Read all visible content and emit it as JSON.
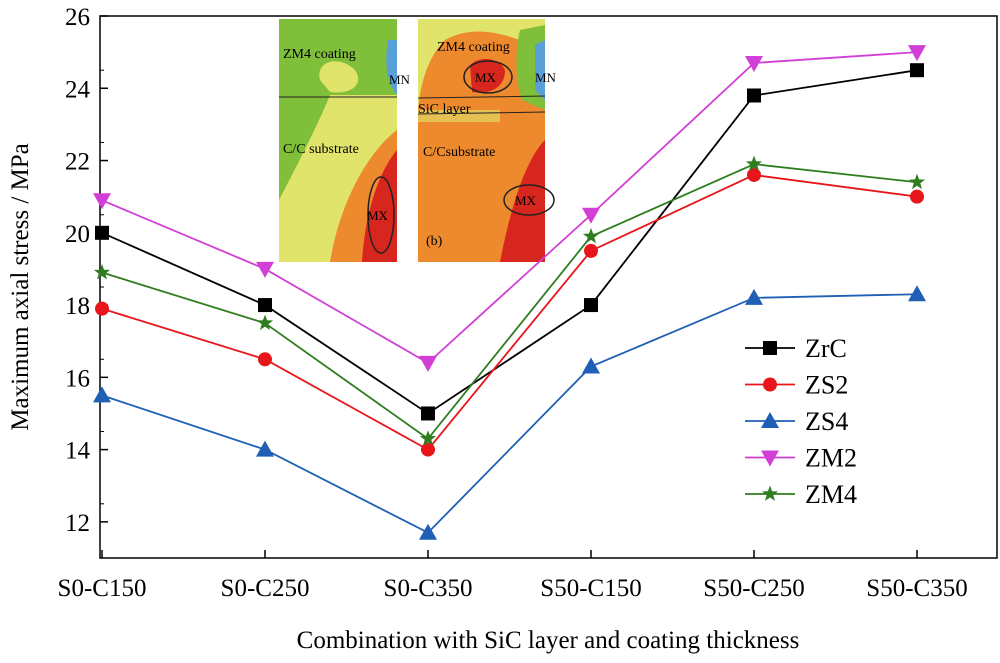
{
  "chart_data": {
    "type": "line",
    "title": "",
    "xlabel": "Combination with SiC layer and coating thickness",
    "ylabel": "Maximum axial stress / MPa",
    "categories": [
      "S0-C150",
      "S0-C250",
      "S0-C350",
      "S50-C150",
      "S50-C250",
      "S50-C350"
    ],
    "ylim": [
      11,
      26
    ],
    "yticks": [
      12,
      14,
      16,
      18,
      20,
      22,
      24,
      26
    ],
    "legend_position": "bottom-right",
    "series": [
      {
        "name": "ZrC",
        "color": "#000000",
        "marker": "square",
        "values": [
          20.0,
          18.0,
          15.0,
          18.0,
          23.8,
          24.5
        ]
      },
      {
        "name": "ZS2",
        "color": "#e8151b",
        "marker": "circle",
        "values": [
          17.9,
          16.5,
          14.0,
          19.5,
          21.6,
          21.0
        ]
      },
      {
        "name": "ZS4",
        "color": "#1f5fb5",
        "marker": "triangle-up",
        "values": [
          15.5,
          14.0,
          11.7,
          16.3,
          18.2,
          18.3
        ]
      },
      {
        "name": "ZM2",
        "color": "#d23fd6",
        "marker": "triangle-down",
        "values": [
          20.9,
          19.0,
          16.4,
          20.5,
          24.7,
          25.0
        ]
      },
      {
        "name": "ZM4",
        "color": "#2f7d1e",
        "marker": "star",
        "values": [
          18.9,
          17.5,
          14.3,
          19.9,
          21.9,
          21.4
        ]
      }
    ],
    "inset": {
      "left_panel": {
        "coating": "ZM4 coating",
        "substrate": "C/C substrate",
        "min": "MN",
        "max": "MX"
      },
      "right_panel": {
        "coating": "ZM4 coating",
        "layer": "SiC layer",
        "substrate": "C/Csubstrate",
        "min": "MN",
        "max_coating": "MX",
        "max_substrate": "MX",
        "panel_label": "(b)"
      }
    }
  }
}
